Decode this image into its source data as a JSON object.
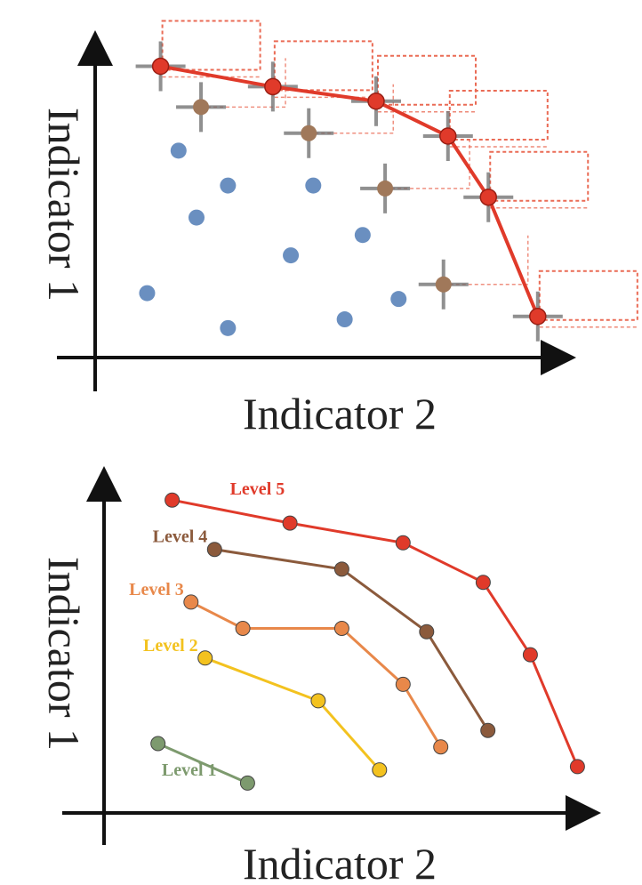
{
  "chart_data": [
    {
      "type": "scatter",
      "title": "",
      "xlabel": "Indicator 2",
      "ylabel": "Indicator 1",
      "xlim": [
        0,
        100
      ],
      "ylim": [
        0,
        100
      ],
      "grid": false,
      "legend": "none",
      "colors": {
        "front": "#e03a2a",
        "dominated_cross": "#a0785a",
        "other": "#6a8fc0",
        "error_bar": "#6b6b6b",
        "dashed_box": "#ea6b55"
      },
      "series": [
        {
          "role": "pareto-front",
          "values": [
            {
              "x": 12,
              "y": 98
            },
            {
              "x": 37,
              "y": 91
            },
            {
              "x": 60,
              "y": 86
            },
            {
              "x": 76,
              "y": 74
            },
            {
              "x": 85,
              "y": 53
            },
            {
              "x": 96,
              "y": 12
            }
          ]
        },
        {
          "role": "dominated-with-error-bars",
          "values": [
            {
              "x": 21,
              "y": 84
            },
            {
              "x": 45,
              "y": 75
            },
            {
              "x": 62,
              "y": 56
            },
            {
              "x": 75,
              "y": 23
            }
          ]
        },
        {
          "role": "other-solutions",
          "values": [
            {
              "x": 16,
              "y": 69
            },
            {
              "x": 27,
              "y": 57
            },
            {
              "x": 46,
              "y": 57
            },
            {
              "x": 20,
              "y": 46
            },
            {
              "x": 41,
              "y": 33
            },
            {
              "x": 57,
              "y": 40
            },
            {
              "x": 9,
              "y": 20
            },
            {
              "x": 27,
              "y": 8
            },
            {
              "x": 53,
              "y": 11
            },
            {
              "x": 65,
              "y": 18
            }
          ]
        }
      ]
    },
    {
      "type": "line",
      "title": "",
      "xlabel": "Indicator 2",
      "ylabel": "Indicator 1",
      "xlim": [
        0,
        100
      ],
      "ylim": [
        0,
        100
      ],
      "grid": false,
      "legend": "inline-labels",
      "series": [
        {
          "name": "Level 5",
          "color": "#e03a2a",
          "values": [
            {
              "x": 12,
              "y": 94
            },
            {
              "x": 37,
              "y": 87
            },
            {
              "x": 61,
              "y": 81
            },
            {
              "x": 78,
              "y": 69
            },
            {
              "x": 88,
              "y": 47
            },
            {
              "x": 98,
              "y": 13
            }
          ]
        },
        {
          "name": "Level 4",
          "color": "#8b5a3c",
          "values": [
            {
              "x": 21,
              "y": 79
            },
            {
              "x": 48,
              "y": 73
            },
            {
              "x": 66,
              "y": 54
            },
            {
              "x": 79,
              "y": 24
            }
          ]
        },
        {
          "name": "Level 3",
          "color": "#e8884a",
          "values": [
            {
              "x": 16,
              "y": 63
            },
            {
              "x": 27,
              "y": 55
            },
            {
              "x": 48,
              "y": 55
            },
            {
              "x": 61,
              "y": 38
            },
            {
              "x": 69,
              "y": 19
            }
          ]
        },
        {
          "name": "Level 2",
          "color": "#f3c21f",
          "values": [
            {
              "x": 19,
              "y": 46
            },
            {
              "x": 43,
              "y": 33
            },
            {
              "x": 56,
              "y": 12
            }
          ]
        },
        {
          "name": "Level 1",
          "color": "#7d9a6e",
          "values": [
            {
              "x": 9,
              "y": 20
            },
            {
              "x": 28,
              "y": 8
            }
          ]
        }
      ]
    }
  ]
}
